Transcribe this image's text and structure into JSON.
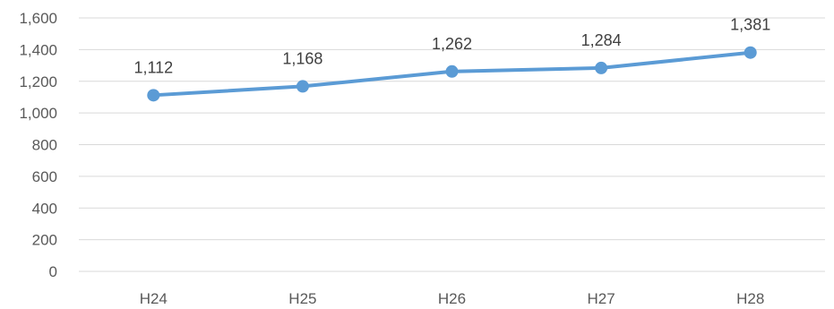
{
  "chart_data": {
    "type": "line",
    "title": "",
    "xlabel": "",
    "ylabel": "",
    "categories": [
      "H24",
      "H25",
      "H26",
      "H27",
      "H28"
    ],
    "series": [
      {
        "values": [
          1112,
          1168,
          1262,
          1284,
          1381
        ],
        "color": "#5b9bd5"
      }
    ],
    "data_labels": [
      "1,112",
      "1,168",
      "1,262",
      "1,284",
      "1,381"
    ],
    "ylim": [
      0,
      1600
    ],
    "y_ticks": [
      {
        "value": 0,
        "label": "0"
      },
      {
        "value": 200,
        "label": "200"
      },
      {
        "value": 400,
        "label": "400"
      },
      {
        "value": 600,
        "label": "600"
      },
      {
        "value": 800,
        "label": "800"
      },
      {
        "value": 1000,
        "label": "1,000"
      },
      {
        "value": 1200,
        "label": "1,200"
      },
      {
        "value": 1400,
        "label": "1,400"
      },
      {
        "value": 1600,
        "label": "1,600"
      }
    ],
    "grid": true,
    "legend": "none",
    "gridline_color": "#d9d9d9"
  }
}
